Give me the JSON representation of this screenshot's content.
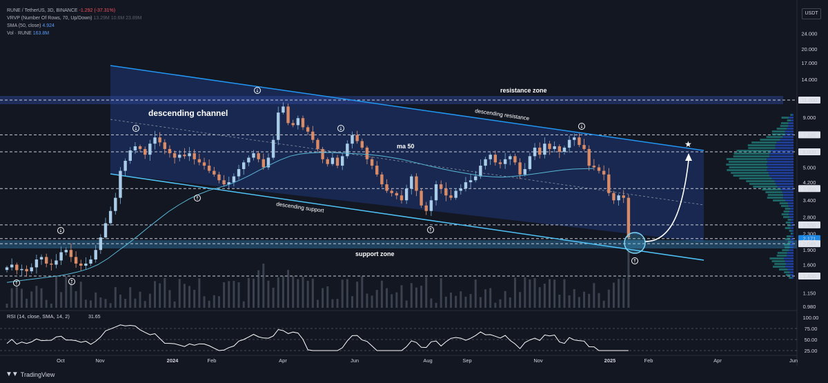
{
  "chart_data": {
    "type": "candlestick",
    "symbol": "RUNE / TetherUS, 3D, BINANCE",
    "change": "-1.292 (-37.31%)",
    "indicators": {
      "vrvp": {
        "label": "VRVP (Number Of Rows, 70, Up/Down)",
        "values": [
          "13.29M",
          "10.6M",
          "23.89M"
        ]
      },
      "sma": {
        "label": "SMA (50, close)",
        "value": "4.924"
      },
      "vol": {
        "label": "Vol · RUNE",
        "value": "163.8M"
      },
      "rsi": {
        "label": "RSI (14, close, SMA, 14, 2)",
        "value": "31.65"
      }
    },
    "currency": "USDT",
    "x_tick_labels": [
      "Oct",
      "Nov",
      "2024",
      "Feb",
      "Apr",
      "Jun",
      "Aug",
      "Sep",
      "Nov",
      "2025",
      "Feb",
      "Apr",
      "Jun"
    ],
    "y_scale": "log",
    "y_tick_labels": [
      "24.000",
      "20.000",
      "17.000",
      "14.000",
      "11.000",
      "9.000",
      "7.320",
      "6.000",
      "5.000",
      "4.200",
      "3.900",
      "3.400",
      "2.800",
      "2.550",
      "2.300",
      "2.171",
      "2.045",
      "1.900",
      "1.600",
      "1.400",
      "1.150",
      "0.980"
    ],
    "highlighted_levels": [
      11.0,
      7.32,
      6.0,
      3.9,
      2.55,
      2.171,
      2.045,
      1.4
    ],
    "rsi_tick_labels": [
      "100.00",
      "75.00",
      "50.00",
      "25.00"
    ],
    "close_prices": [
      1.55,
      1.6,
      1.5,
      1.52,
      1.48,
      1.55,
      1.7,
      1.75,
      1.62,
      1.6,
      1.68,
      1.85,
      1.9,
      1.75,
      1.62,
      1.58,
      1.62,
      1.7,
      1.9,
      2.2,
      2.6,
      3.0,
      3.5,
      4.8,
      5.4,
      6.1,
      6.4,
      6.2,
      5.8,
      6.6,
      7.1,
      6.7,
      6.2,
      5.9,
      5.6,
      5.8,
      5.7,
      5.9,
      5.5,
      5.3,
      5.1,
      4.8,
      4.6,
      4.3,
      4.1,
      4.2,
      4.5,
      4.9,
      5.3,
      5.6,
      5.9,
      5.5,
      5.0,
      5.6,
      6.9,
      9.5,
      10.2,
      8.4,
      8.2,
      8.9,
      8.0,
      7.6,
      6.9,
      6.2,
      5.5,
      5.2,
      5.6,
      5.1,
      5.7,
      6.6,
      7.3,
      6.8,
      6.3,
      5.5,
      5.1,
      4.6,
      4.1,
      3.8,
      3.7,
      3.6,
      3.4,
      3.9,
      4.5,
      3.8,
      3.2,
      3.0,
      3.4,
      4.1,
      3.9,
      3.6,
      3.5,
      3.8,
      3.9,
      4.2,
      4.3,
      4.5,
      5.1,
      5.5,
      5.8,
      5.3,
      5.2,
      5.5,
      5.7,
      5.3,
      4.6,
      4.9,
      5.7,
      6.3,
      5.8,
      6.6,
      6.2,
      6.4,
      6.0,
      6.3,
      6.9,
      7.1,
      6.5,
      6.2,
      5.1,
      5.0,
      4.8,
      4.6,
      3.7,
      3.4,
      3.6,
      3.5,
      2.2
    ],
    "sma50": [
      1.3,
      1.32,
      1.34,
      1.36,
      1.38,
      1.4,
      1.43,
      1.47,
      1.52,
      1.6,
      1.72,
      1.88,
      2.05,
      2.25,
      2.48,
      2.72,
      2.98,
      3.22,
      3.45,
      3.65,
      3.82,
      3.95,
      4.1,
      4.3,
      4.55,
      4.85,
      5.15,
      5.45,
      5.7,
      5.85,
      5.92,
      5.95,
      5.95,
      5.92,
      5.88,
      5.85,
      5.8,
      5.72,
      5.62,
      5.5,
      5.35,
      5.2,
      5.05,
      4.92,
      4.8,
      4.7,
      4.6,
      4.52,
      4.48,
      4.46,
      4.5,
      4.55,
      4.62,
      4.7,
      4.78,
      4.85,
      4.9,
      4.92,
      4.93
    ],
    "channel": {
      "upper": [
        {
          "date": "2023-11",
          "price": 16.0
        },
        {
          "date": "2025-04",
          "price": 6.1
        }
      ],
      "lower": [
        {
          "date": "2023-11",
          "price": 4.6
        },
        {
          "date": "2025-04",
          "price": 1.68
        }
      ]
    },
    "zones": {
      "resistance": {
        "low": 10.6,
        "high": 11.5
      },
      "support": {
        "low": 1.98,
        "high": 2.2
      }
    },
    "annotations": {
      "channel": "descending channel",
      "resistance_zone": "resistance zone",
      "support_zone": "support zone",
      "desc_resistance": "descending resistance",
      "desc_support": "descending support",
      "ma": "ma 50"
    },
    "colors": {
      "up": "#26a69a",
      "down": "#ef5350",
      "channel": "#1e3a78",
      "trend": "#1e88e5",
      "support_line": "#4fc3f7",
      "ma": "#5ab8d6",
      "rsi": "#ffffff"
    }
  },
  "brand": "TradingView"
}
